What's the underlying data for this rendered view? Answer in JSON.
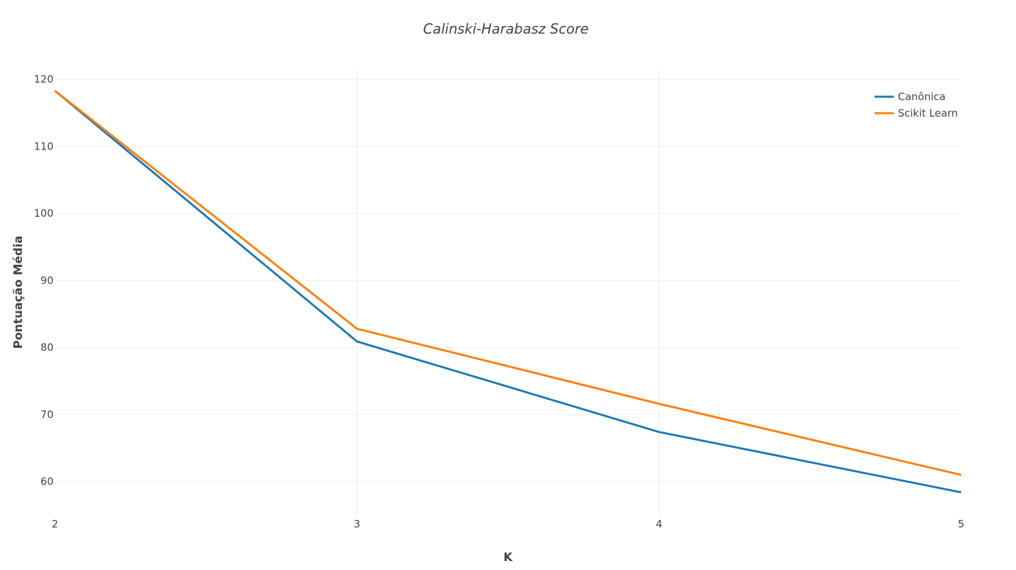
{
  "chart_data": {
    "type": "line",
    "title": "Calinski-Harabasz Score",
    "xlabel": "K",
    "ylabel": "Pontuação Média",
    "x": [
      2,
      3,
      4,
      5
    ],
    "xlim": [
      2,
      5
    ],
    "ylim": [
      55,
      121.5
    ],
    "x_ticks": [
      "2",
      "3",
      "4",
      "5"
    ],
    "y_ticks": [
      60,
      70,
      80,
      90,
      100,
      110,
      120
    ],
    "grid": true,
    "legend_position": "top-right",
    "series": [
      {
        "name": "Canônica",
        "color": "#1f77b4",
        "values": [
          118.3,
          80.9,
          67.4,
          58.4
        ]
      },
      {
        "name": "Scikit Learn",
        "color": "#ff7f0e",
        "values": [
          118.3,
          82.8,
          71.6,
          61.0
        ]
      }
    ]
  }
}
